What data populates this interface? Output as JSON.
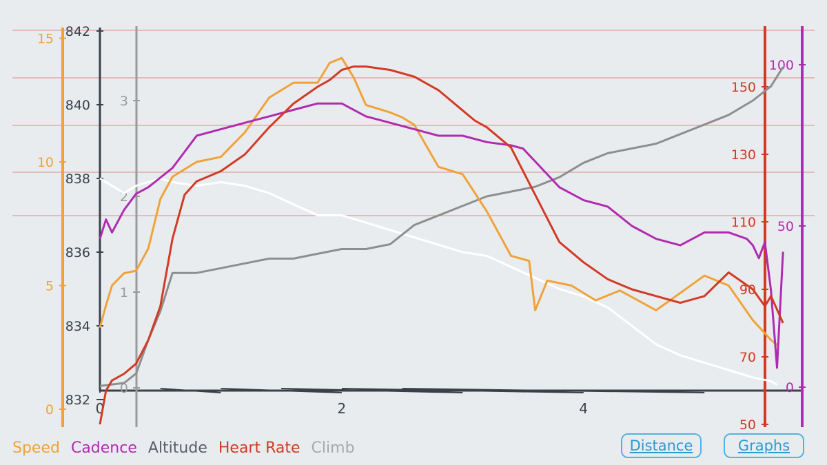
{
  "colors": {
    "speed": "#f0a238",
    "cadence": "#b02bb0",
    "altitude": "#9a9a9a",
    "heart_rate": "#d23a24",
    "climb": "#a8a8a8",
    "distance_axis": "#3a3f4a",
    "accent": "#2a9ad6"
  },
  "legend": {
    "speed": "Speed",
    "cadence": "Cadence",
    "altitude": "Altitude",
    "heart_rate": "Heart Rate",
    "climb": "Climb"
  },
  "buttons": {
    "distance": "Distance",
    "graphs": "Graphs"
  },
  "chart_data": {
    "type": "line",
    "x_ticks": [
      "0",
      "2",
      "4"
    ],
    "xlim": [
      0,
      5.7
    ],
    "axes": {
      "speed": {
        "ticks": [
          "0",
          "5",
          "10",
          "15"
        ],
        "range": [
          0,
          15.6
        ]
      },
      "altitude": {
        "ticks": [
          "832",
          "834",
          "836",
          "838",
          "840",
          "842"
        ],
        "range": [
          832,
          842
        ]
      },
      "climb": {
        "ticks": [
          "0",
          "1",
          "2",
          "3"
        ],
        "range": [
          0,
          3.4
        ]
      },
      "heart_rate": {
        "ticks": [
          "50",
          "70",
          "90",
          "110",
          "130",
          "150"
        ],
        "range": [
          50,
          160
        ]
      },
      "cadence": {
        "ticks": [
          "0",
          "50",
          "100"
        ],
        "range": [
          0,
          110
        ]
      }
    },
    "series": [
      {
        "name": "Speed",
        "key": "speed",
        "x": [
          0,
          0.05,
          0.1,
          0.2,
          0.3,
          0.4,
          0.5,
          0.6,
          0.8,
          1.0,
          1.2,
          1.4,
          1.6,
          1.8,
          1.9,
          2.0,
          2.1,
          2.2,
          2.4,
          2.5,
          2.6,
          2.8,
          3.0,
          3.2,
          3.4,
          3.55,
          3.6,
          3.7,
          3.9,
          4.1,
          4.3,
          4.6,
          4.8,
          5.0,
          5.2,
          5.4,
          5.55,
          5.6
        ],
        "values": [
          3.3,
          4.2,
          5.0,
          5.5,
          5.6,
          6.5,
          8.5,
          9.4,
          10.0,
          10.2,
          11.2,
          12.6,
          13.2,
          13.2,
          14.0,
          14.2,
          13.4,
          12.3,
          12.0,
          11.8,
          11.5,
          9.8,
          9.5,
          8.0,
          6.2,
          6.0,
          4.0,
          5.2,
          5.0,
          4.4,
          4.8,
          4.0,
          4.7,
          5.4,
          5.0,
          3.6,
          2.8,
          2.6
        ]
      },
      {
        "name": "Cadence",
        "key": "cadence",
        "x": [
          0,
          0.05,
          0.1,
          0.2,
          0.3,
          0.4,
          0.5,
          0.6,
          0.8,
          1.0,
          1.2,
          1.4,
          1.6,
          1.8,
          2.0,
          2.2,
          2.4,
          2.6,
          2.8,
          3.0,
          3.2,
          3.4,
          3.5,
          3.6,
          3.8,
          4.0,
          4.2,
          4.4,
          4.6,
          4.8,
          5.0,
          5.2,
          5.35,
          5.4,
          5.45,
          5.5,
          5.55,
          5.6,
          5.65
        ],
        "values": [
          46,
          52,
          48,
          55,
          60,
          62,
          65,
          68,
          78,
          80,
          82,
          84,
          86,
          88,
          88,
          84,
          82,
          80,
          78,
          78,
          76,
          75,
          74,
          70,
          62,
          58,
          56,
          50,
          46,
          44,
          48,
          48,
          46,
          44,
          40,
          45,
          30,
          6,
          42
        ]
      },
      {
        "name": "Altitude",
        "key": "altitude",
        "x": [
          0,
          0.1,
          0.2,
          0.3,
          0.4,
          0.5,
          0.6,
          0.8,
          1.0,
          1.2,
          1.4,
          1.6,
          1.8,
          2.0,
          2.2,
          2.4,
          2.6,
          2.8,
          3.0,
          3.2,
          3.4,
          3.6,
          3.8,
          4.0,
          4.2,
          4.4,
          4.6,
          4.8,
          5.0,
          5.2,
          5.4,
          5.55,
          5.6
        ],
        "values": [
          838.0,
          837.8,
          837.6,
          837.8,
          837.9,
          838.0,
          837.9,
          837.8,
          837.9,
          837.8,
          837.6,
          837.3,
          837.0,
          837.0,
          836.8,
          836.6,
          836.4,
          836.2,
          836.0,
          835.9,
          835.6,
          835.3,
          835.0,
          834.8,
          834.5,
          834.0,
          833.5,
          833.2,
          833.0,
          832.8,
          832.6,
          832.5,
          832.4
        ]
      },
      {
        "name": "Heart Rate",
        "key": "heart_rate",
        "x": [
          0,
          0.05,
          0.1,
          0.2,
          0.3,
          0.4,
          0.5,
          0.6,
          0.7,
          0.8,
          1.0,
          1.2,
          1.4,
          1.6,
          1.8,
          1.9,
          2.0,
          2.1,
          2.2,
          2.4,
          2.6,
          2.8,
          3.0,
          3.1,
          3.2,
          3.4,
          3.6,
          3.8,
          4.0,
          4.2,
          4.4,
          4.6,
          4.8,
          5.0,
          5.2,
          5.4,
          5.5,
          5.55,
          5.6,
          5.65
        ],
        "values": [
          50,
          60,
          63,
          65,
          68,
          75,
          85,
          105,
          118,
          122,
          125,
          130,
          138,
          145,
          150,
          152,
          155,
          156,
          156,
          155,
          153,
          149,
          143,
          140,
          138,
          132,
          118,
          104,
          98,
          93,
          90,
          88,
          86,
          88,
          95,
          90,
          85,
          88,
          84,
          80
        ]
      },
      {
        "name": "Climb",
        "key": "climb",
        "x": [
          0,
          0.2,
          0.3,
          0.4,
          0.5,
          0.6,
          0.8,
          1.0,
          1.2,
          1.4,
          1.6,
          1.8,
          2.0,
          2.2,
          2.4,
          2.6,
          2.8,
          3.0,
          3.2,
          3.4,
          3.6,
          3.8,
          4.0,
          4.2,
          4.4,
          4.6,
          4.8,
          5.0,
          5.2,
          5.4,
          5.55,
          5.65
        ],
        "values": [
          0.02,
          0.05,
          0.15,
          0.5,
          0.8,
          1.2,
          1.2,
          1.25,
          1.3,
          1.35,
          1.35,
          1.4,
          1.45,
          1.45,
          1.5,
          1.7,
          1.8,
          1.9,
          2.0,
          2.05,
          2.1,
          2.2,
          2.35,
          2.45,
          2.5,
          2.55,
          2.65,
          2.75,
          2.85,
          3.0,
          3.15,
          3.35
        ]
      }
    ]
  }
}
